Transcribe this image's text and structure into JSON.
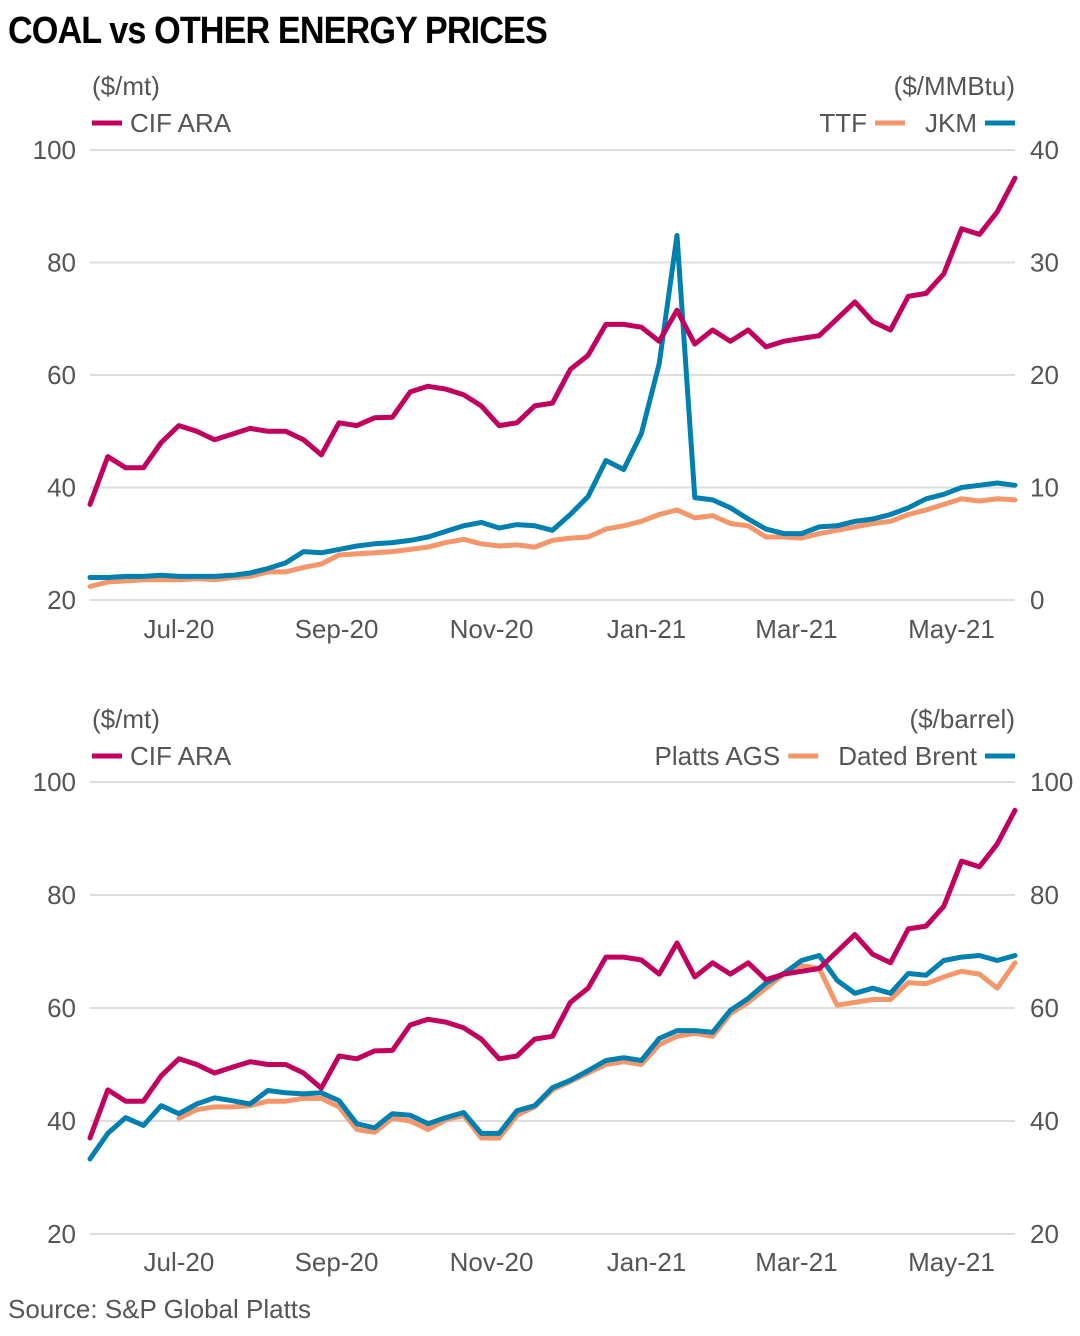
{
  "title": "COAL vs OTHER ENERGY PRICES",
  "source": "Source: S&P Global Platts",
  "colors": {
    "cif_ara": "#c2005e",
    "orange": "#f5956a",
    "blue": "#0080b0",
    "grid": "#dddddd",
    "text": "#555555"
  },
  "chart_data": [
    {
      "type": "line",
      "left_unit": "($/mt)",
      "right_unit": "($/MMBtu)",
      "ylim_left": [
        20,
        100
      ],
      "ylim_right": [
        0,
        40
      ],
      "yticks_left": [
        "100",
        "80",
        "60",
        "40",
        "20"
      ],
      "yticks_right": [
        "40",
        "30",
        "20",
        "10",
        "0"
      ],
      "grid": true,
      "xticks": [
        {
          "date": "2020-07-01",
          "label": "Jul-20"
        },
        {
          "date": "2020-09-01",
          "label": "Sep-20"
        },
        {
          "date": "2020-11-01",
          "label": "Nov-20"
        },
        {
          "date": "2021-01-01",
          "label": "Jan-21"
        },
        {
          "date": "2021-03-01",
          "label": "Mar-21"
        },
        {
          "date": "2021-05-01",
          "label": "May-21"
        }
      ],
      "dates": [
        "2020-05-27",
        "2020-06-03",
        "2020-06-10",
        "2020-06-17",
        "2020-06-24",
        "2020-07-01",
        "2020-07-08",
        "2020-07-15",
        "2020-07-22",
        "2020-07-29",
        "2020-08-05",
        "2020-08-12",
        "2020-08-19",
        "2020-08-26",
        "2020-09-02",
        "2020-09-09",
        "2020-09-16",
        "2020-09-23",
        "2020-09-30",
        "2020-10-07",
        "2020-10-14",
        "2020-10-21",
        "2020-10-28",
        "2020-11-04",
        "2020-11-11",
        "2020-11-18",
        "2020-11-25",
        "2020-12-02",
        "2020-12-09",
        "2020-12-16",
        "2020-12-23",
        "2020-12-30",
        "2021-01-06",
        "2021-01-13",
        "2021-01-20",
        "2021-01-27",
        "2021-02-03",
        "2021-02-10",
        "2021-02-17",
        "2021-02-24",
        "2021-03-03",
        "2021-03-10",
        "2021-03-17",
        "2021-03-24",
        "2021-03-31",
        "2021-04-07",
        "2021-04-14",
        "2021-04-21",
        "2021-04-28",
        "2021-05-05",
        "2021-05-12",
        "2021-05-19",
        "2021-05-26"
      ],
      "series": [
        {
          "name": "CIF ARA",
          "axis": "left",
          "color": "#c2005e",
          "legend": "left",
          "values": [
            37,
            45.5,
            43.5,
            43.5,
            48,
            51,
            50,
            48.5,
            49.5,
            50.5,
            50,
            50,
            48.5,
            45.8,
            51.5,
            51,
            52.4,
            52.5,
            57,
            58,
            57.5,
            56.5,
            54.5,
            51,
            51.5,
            54.5,
            55,
            61,
            63.5,
            69,
            69,
            68.5,
            66,
            71.5,
            65.5,
            68,
            66,
            68,
            65,
            66,
            66.5,
            67,
            70,
            73,
            69.5,
            68,
            74,
            74.5,
            78,
            86,
            85,
            89,
            95
          ]
        },
        {
          "name": "TTF",
          "axis": "right",
          "color": "#f5956a",
          "legend": "right",
          "values": [
            1.2,
            1.6,
            1.7,
            1.8,
            1.8,
            1.8,
            1.9,
            1.8,
            2.0,
            2.1,
            2.5,
            2.5,
            2.9,
            3.2,
            4.0,
            4.1,
            4.2,
            4.3,
            4.5,
            4.7,
            5.1,
            5.4,
            5.0,
            4.8,
            4.9,
            4.7,
            5.3,
            5.5,
            5.6,
            6.3,
            6.6,
            7.0,
            7.6,
            8.0,
            7.3,
            7.5,
            6.8,
            6.6,
            5.6,
            5.6,
            5.5,
            5.9,
            6.2,
            6.5,
            6.8,
            7.0,
            7.6,
            8.0,
            8.5,
            9.0,
            8.8,
            9.0,
            8.9
          ]
        },
        {
          "name": "JKM",
          "axis": "right",
          "color": "#0080b0",
          "legend": "right",
          "values": [
            2.0,
            2.0,
            2.1,
            2.1,
            2.2,
            2.1,
            2.1,
            2.1,
            2.2,
            2.4,
            2.8,
            3.3,
            4.3,
            4.2,
            4.5,
            4.8,
            5.0,
            5.1,
            5.3,
            5.6,
            6.1,
            6.6,
            6.9,
            6.4,
            6.7,
            6.6,
            6.2,
            7.6,
            9.2,
            12.4,
            11.6,
            14.8,
            21.0,
            32.4,
            9.1,
            8.9,
            8.2,
            7.2,
            6.3,
            5.9,
            5.9,
            6.5,
            6.6,
            7.0,
            7.2,
            7.6,
            8.2,
            9.0,
            9.4,
            10.0,
            10.2,
            10.4,
            10.2
          ]
        }
      ]
    },
    {
      "type": "line",
      "left_unit": "($/mt)",
      "right_unit": "($/barrel)",
      "ylim_left": [
        20,
        100
      ],
      "ylim_right": [
        20,
        100
      ],
      "yticks_left": [
        "100",
        "80",
        "60",
        "40",
        "20"
      ],
      "yticks_right": [
        "100",
        "80",
        "60",
        "40",
        "20"
      ],
      "grid": true,
      "xticks": [
        {
          "date": "2020-07-01",
          "label": "Jul-20"
        },
        {
          "date": "2020-09-01",
          "label": "Sep-20"
        },
        {
          "date": "2020-11-01",
          "label": "Nov-20"
        },
        {
          "date": "2021-01-01",
          "label": "Jan-21"
        },
        {
          "date": "2021-03-01",
          "label": "Mar-21"
        },
        {
          "date": "2021-05-01",
          "label": "May-21"
        }
      ],
      "dates": [
        "2020-05-27",
        "2020-06-03",
        "2020-06-10",
        "2020-06-17",
        "2020-06-24",
        "2020-07-01",
        "2020-07-08",
        "2020-07-15",
        "2020-07-22",
        "2020-07-29",
        "2020-08-05",
        "2020-08-12",
        "2020-08-19",
        "2020-08-26",
        "2020-09-02",
        "2020-09-09",
        "2020-09-16",
        "2020-09-23",
        "2020-09-30",
        "2020-10-07",
        "2020-10-14",
        "2020-10-21",
        "2020-10-28",
        "2020-11-04",
        "2020-11-11",
        "2020-11-18",
        "2020-11-25",
        "2020-12-02",
        "2020-12-09",
        "2020-12-16",
        "2020-12-23",
        "2020-12-30",
        "2021-01-06",
        "2021-01-13",
        "2021-01-20",
        "2021-01-27",
        "2021-02-03",
        "2021-02-10",
        "2021-02-17",
        "2021-02-24",
        "2021-03-03",
        "2021-03-10",
        "2021-03-17",
        "2021-03-24",
        "2021-03-31",
        "2021-04-07",
        "2021-04-14",
        "2021-04-21",
        "2021-04-28",
        "2021-05-05",
        "2021-05-12",
        "2021-05-19",
        "2021-05-26"
      ],
      "series": [
        {
          "name": "CIF ARA",
          "axis": "left",
          "color": "#c2005e",
          "legend": "left",
          "values": [
            37,
            45.5,
            43.5,
            43.5,
            48,
            51,
            50,
            48.5,
            49.5,
            50.5,
            50,
            50,
            48.5,
            45.8,
            51.5,
            51,
            52.4,
            52.5,
            57,
            58,
            57.5,
            56.5,
            54.5,
            51,
            51.5,
            54.5,
            55,
            61,
            63.5,
            69,
            69,
            68.5,
            66,
            71.5,
            65.5,
            68,
            66,
            68,
            65,
            66,
            66.5,
            67,
            70,
            73,
            69.5,
            68,
            74,
            74.5,
            78,
            86,
            85,
            89,
            95
          ]
        },
        {
          "name": "Platts AGS",
          "axis": "right",
          "color": "#f5956a",
          "legend": "right",
          "values": [
            null,
            null,
            null,
            null,
            null,
            40.5,
            42,
            42.5,
            42.5,
            42.7,
            43.5,
            43.5,
            44,
            44,
            42.5,
            38.5,
            38,
            40.5,
            40,
            38.5,
            40.2,
            41,
            37,
            37,
            41,
            42.5,
            45.5,
            47,
            48.5,
            50,
            50.5,
            50,
            53.5,
            55,
            55.5,
            55,
            59,
            61,
            63.5,
            66,
            67.5,
            67,
            60.5,
            61,
            61.5,
            61.5,
            64.5,
            64.3,
            65.5,
            66.5,
            66,
            63.5,
            68
          ]
        },
        {
          "name": "Dated Brent",
          "axis": "right",
          "color": "#0080b0",
          "legend": "right",
          "values": [
            33.3,
            37.8,
            40.6,
            39.2,
            42.7,
            41.3,
            43,
            44.1,
            43.6,
            43,
            45.4,
            45,
            44.8,
            45,
            43.6,
            39.5,
            38.8,
            41.3,
            41,
            39.5,
            40.6,
            41.5,
            37.8,
            37.8,
            41.8,
            42.7,
            45.9,
            47.2,
            48.9,
            50.7,
            51.2,
            50.7,
            54.6,
            56,
            56,
            55.7,
            59.6,
            61.7,
            64.4,
            66.1,
            68.4,
            69.3,
            64.9,
            62.6,
            63.5,
            62.6,
            66.1,
            65.8,
            68.4,
            69,
            69.3,
            68.4,
            69.3
          ]
        }
      ]
    }
  ]
}
